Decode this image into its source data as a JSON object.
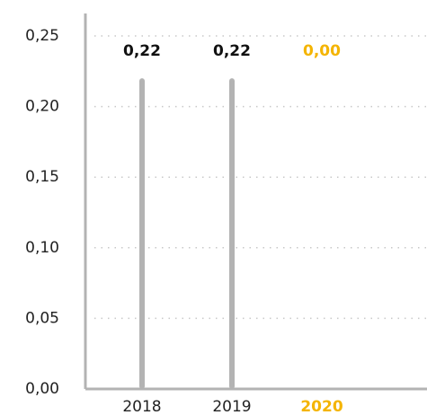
{
  "chart_data": {
    "type": "bar",
    "categories": [
      "2018",
      "2019",
      "2020"
    ],
    "values": [
      0.22,
      0.22,
      0.0
    ],
    "value_labels": [
      "0,22",
      "0,22",
      "0,00"
    ],
    "color": "#b3b3b3",
    "label_color": "#111111",
    "highlight_color": "#f4b400",
    "highlight": [
      false,
      false,
      true
    ],
    "ylim": [
      0,
      0.25
    ],
    "yticks": [
      {
        "value": 0,
        "label": "0,00"
      },
      {
        "value": 0.05,
        "label": "0,05"
      },
      {
        "value": 0.1,
        "label": "0,10"
      },
      {
        "value": 0.15,
        "label": "0,15"
      },
      {
        "value": 0.2,
        "label": "0,20"
      },
      {
        "value": 0.25,
        "label": "0,25"
      }
    ],
    "grid": true
  }
}
